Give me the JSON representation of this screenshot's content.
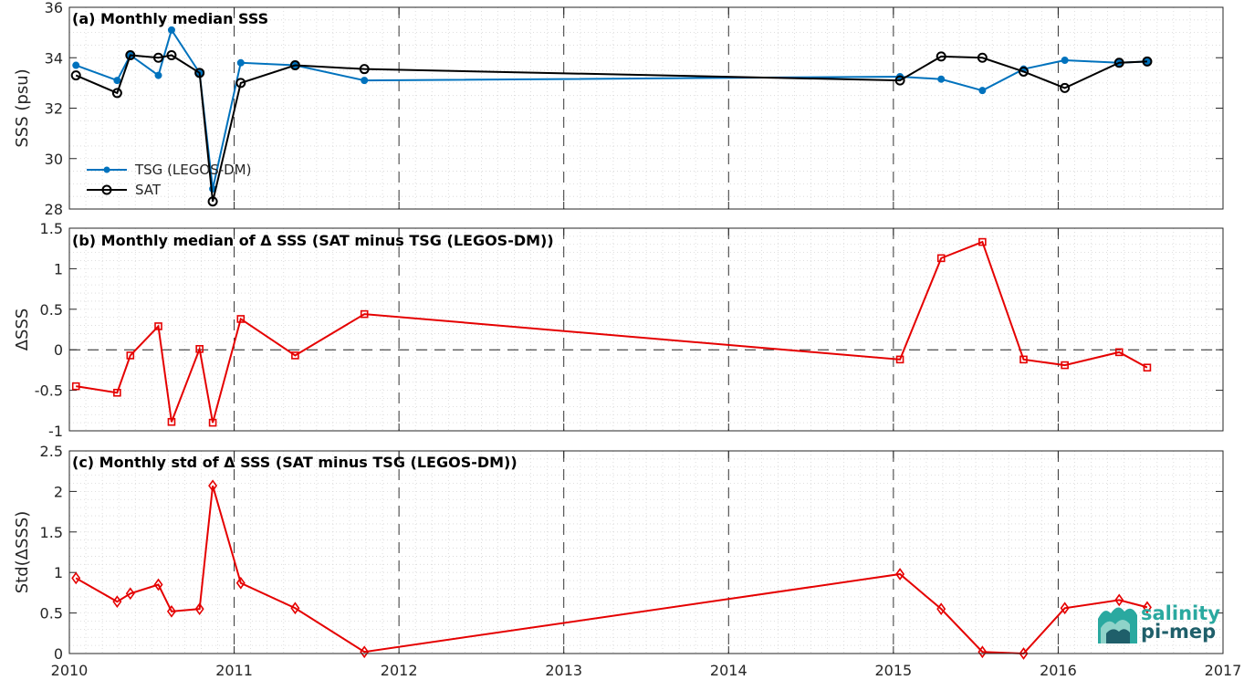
{
  "chart_data": [
    {
      "type": "line",
      "title": "(a) Monthly median SSS",
      "ylabel": "SSS (psu)",
      "xlim": [
        2010,
        2017
      ],
      "ylim": [
        28,
        36
      ],
      "yticks": [
        "28",
        "30",
        "32",
        "34",
        "36"
      ],
      "grid": true,
      "legend_position": "lower-left",
      "series": [
        {
          "name": "TSG (LEGOS-DM)",
          "color": "#0072bd",
          "marker": "dot",
          "x": [
            2010.04,
            2010.29,
            2010.37,
            2010.54,
            2010.62,
            2010.79,
            2010.87,
            2011.04,
            2011.37,
            2011.79,
            2015.04,
            2015.29,
            2015.54,
            2015.79,
            2016.04,
            2016.37,
            2016.54
          ],
          "y": [
            33.7,
            33.1,
            34.1,
            33.3,
            35.1,
            33.4,
            28.8,
            33.8,
            33.7,
            33.1,
            33.25,
            33.15,
            32.7,
            33.55,
            33.9,
            33.8,
            33.85
          ]
        },
        {
          "name": "SAT",
          "color": "#000000",
          "marker": "circle",
          "x": [
            2010.04,
            2010.29,
            2010.37,
            2010.54,
            2010.62,
            2010.79,
            2010.87,
            2011.04,
            2011.37,
            2011.79,
            2015.04,
            2015.29,
            2015.54,
            2015.79,
            2016.04,
            2016.37,
            2016.54
          ],
          "y": [
            33.3,
            32.6,
            34.1,
            34.0,
            34.1,
            33.4,
            28.3,
            33.0,
            33.7,
            33.55,
            33.1,
            34.05,
            34.0,
            33.45,
            32.8,
            33.8,
            33.85
          ]
        }
      ]
    },
    {
      "type": "line",
      "title": "(b) Monthly median of Δ SSS (SAT minus TSG (LEGOS-DM))",
      "ylabel": "ΔSSS",
      "xlim": [
        2010,
        2017
      ],
      "ylim": [
        -1,
        1.5
      ],
      "yticks": [
        "-1",
        "-0.5",
        "0",
        "0.5",
        "1",
        "1.5"
      ],
      "grid": true,
      "zero_line": true,
      "series": [
        {
          "color": "#e50000",
          "marker": "square",
          "x": [
            2010.04,
            2010.29,
            2010.37,
            2010.54,
            2010.62,
            2010.79,
            2010.87,
            2011.04,
            2011.37,
            2011.79,
            2015.04,
            2015.29,
            2015.54,
            2015.79,
            2016.04,
            2016.37,
            2016.54
          ],
          "y": [
            -0.45,
            -0.53,
            -0.07,
            0.29,
            -0.89,
            0.01,
            -0.9,
            0.38,
            -0.07,
            0.44,
            -0.12,
            1.13,
            1.33,
            -0.12,
            -0.19,
            -0.03,
            -0.22
          ]
        }
      ]
    },
    {
      "type": "line",
      "title": "(c) Monthly std of Δ SSS (SAT minus TSG (LEGOS-DM))",
      "ylabel": "Std(ΔSSS)",
      "xlim": [
        2010,
        2017
      ],
      "ylim": [
        0,
        2.5
      ],
      "yticks": [
        "0",
        "0.5",
        "1",
        "1.5",
        "2",
        "2.5"
      ],
      "xticks": [
        "2010",
        "2011",
        "2012",
        "2013",
        "2014",
        "2015",
        "2016",
        "2017"
      ],
      "grid": true,
      "series": [
        {
          "color": "#e50000",
          "marker": "diamond",
          "x": [
            2010.04,
            2010.29,
            2010.37,
            2010.54,
            2010.62,
            2010.79,
            2010.87,
            2011.04,
            2011.37,
            2011.79,
            2015.04,
            2015.29,
            2015.54,
            2015.79,
            2016.04,
            2016.37,
            2016.54
          ],
          "y": [
            0.93,
            0.64,
            0.74,
            0.85,
            0.52,
            0.55,
            2.07,
            0.87,
            0.56,
            0.02,
            0.98,
            0.55,
            0.02,
            0.0,
            0.56,
            0.66,
            0.57
          ]
        }
      ]
    }
  ],
  "logo": {
    "line1": "salinity",
    "line2": "pi-mep"
  }
}
